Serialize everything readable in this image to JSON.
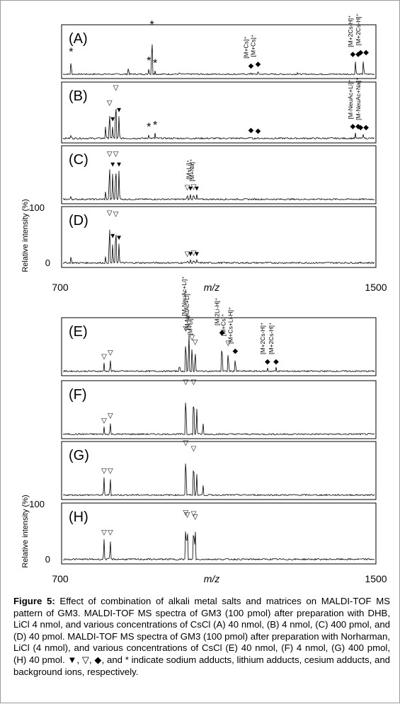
{
  "figure": {
    "caption_label": "Figure 5:",
    "caption_text": " Effect of combination of alkali metal salts and matrices on MALDI-TOF MS pattern of GM3. MALDI-TOF MS spectra of GM3 (100 pmol) after preparation with DHB, LiCl 4 nmol, and various concentrations of CsCl (A) 40 nmol, (B) 4 nmol, (C) 400 pmol, and (D) 40 pmol. MALDI-TOF MS spectra of GM3 (100 pmol) after preparation with Norharman, LiCl (4 nmol), and various concentrations of CsCl (E) 40 nmol, (F) 4 nmol, (G) 400 pmol, (H) 40 pmol. ▼, ▽, ◆, and * indicate sodium adducts, lithium adducts, cesium adducts, and background ions, respectively."
  },
  "colors": {
    "trace": "#000000",
    "frame": "#000000",
    "border": "#9a9a9a"
  },
  "chart_data": [
    {
      "type": "line",
      "group": "top",
      "xlabel": "m/z",
      "ylabel": "Relative intensity (%)",
      "xlim": [
        700,
        1500
      ],
      "x_ticks": [
        "700",
        "1500"
      ],
      "y_ticks": [
        "100",
        "0"
      ],
      "panels": [
        {
          "label": "(A)",
          "peaks": [
            {
              "x": 724,
              "y": 0.38,
              "marker": "*"
            },
            {
              "x": 870,
              "y": 0.22,
              "marker": ""
            },
            {
              "x": 922,
              "y": 0.18,
              "marker": "*"
            },
            {
              "x": 930,
              "y": 1.0,
              "marker": "*"
            },
            {
              "x": 938,
              "y": 0.12,
              "marker": "*"
            },
            {
              "x": 1000,
              "y": 0.1,
              "marker": ""
            },
            {
              "x": 1182,
              "y": 0.1,
              "marker": "◆"
            },
            {
              "x": 1200,
              "y": 0.14,
              "marker": "◆"
            },
            {
              "x": 1300,
              "y": 0.07,
              "marker": ""
            },
            {
              "x": 1448,
              "y": 0.36,
              "marker": "◆◆"
            },
            {
              "x": 1468,
              "y": 0.4,
              "marker": "◆◆"
            }
          ],
          "labels": [
            "[M+Cs]⁺",
            "[M+Cs]⁺",
            "[M+2Cs-H]⁺",
            "[M+2Cs-H]⁺"
          ]
        },
        {
          "label": "(B)",
          "peaks": [
            {
              "x": 724,
              "y": 0.12,
              "marker": ""
            },
            {
              "x": 812,
              "y": 0.3,
              "marker": ""
            },
            {
              "x": 822,
              "y": 0.62,
              "marker": "▽"
            },
            {
              "x": 830,
              "y": 0.3,
              "marker": "▼"
            },
            {
              "x": 838,
              "y": 0.92,
              "marker": "▽"
            },
            {
              "x": 846,
              "y": 0.48,
              "marker": "▼"
            },
            {
              "x": 922,
              "y": 0.12,
              "marker": "*"
            },
            {
              "x": 938,
              "y": 0.15,
              "marker": "*"
            },
            {
              "x": 1182,
              "y": 0.08,
              "marker": "◆"
            },
            {
              "x": 1200,
              "y": 0.07,
              "marker": "◆"
            },
            {
              "x": 1448,
              "y": 0.16,
              "marker": "◆◆"
            },
            {
              "x": 1468,
              "y": 0.14,
              "marker": "◆◆"
            }
          ],
          "labels": [
            "[M-NeuAc+Li]⁺",
            "[M-NeuAc+Na]⁺"
          ]
        },
        {
          "label": "(C)",
          "peaks": [
            {
              "x": 724,
              "y": 0.12,
              "marker": ""
            },
            {
              "x": 812,
              "y": 0.22,
              "marker": ""
            },
            {
              "x": 822,
              "y": 0.86,
              "marker": "▽"
            },
            {
              "x": 830,
              "y": 0.64,
              "marker": "▼"
            },
            {
              "x": 838,
              "y": 0.86,
              "marker": "▽"
            },
            {
              "x": 846,
              "y": 0.64,
              "marker": "▼"
            },
            {
              "x": 1020,
              "y": 0.16,
              "marker": "▽"
            },
            {
              "x": 1028,
              "y": 0.14,
              "marker": "▼"
            },
            {
              "x": 1036,
              "y": 0.18,
              "marker": "▽"
            },
            {
              "x": 1044,
              "y": 0.14,
              "marker": "▼"
            }
          ],
          "labels": [
            "[M+Li]⁺",
            "[M+Na]⁺"
          ]
        },
        {
          "label": "(D)",
          "peaks": [
            {
              "x": 724,
              "y": 0.2,
              "marker": ""
            },
            {
              "x": 812,
              "y": 0.18,
              "marker": ""
            },
            {
              "x": 822,
              "y": 0.9,
              "marker": "▽"
            },
            {
              "x": 830,
              "y": 0.45,
              "marker": "▼"
            },
            {
              "x": 838,
              "y": 0.88,
              "marker": "▽"
            },
            {
              "x": 846,
              "y": 0.42,
              "marker": "▼"
            },
            {
              "x": 1020,
              "y": 0.1,
              "marker": "▽"
            },
            {
              "x": 1028,
              "y": 0.1,
              "marker": "▼"
            },
            {
              "x": 1036,
              "y": 0.12,
              "marker": "▽"
            },
            {
              "x": 1044,
              "y": 0.1,
              "marker": "▼"
            }
          ],
          "labels": []
        }
      ]
    },
    {
      "type": "line",
      "group": "bottom",
      "xlabel": "m/z",
      "ylabel": "Relative intensity (%)",
      "xlim": [
        700,
        1500
      ],
      "x_ticks": [
        "700",
        "1500"
      ],
      "y_ticks": [
        "100",
        "0"
      ],
      "panels": [
        {
          "label": "(E)",
          "peaks": [
            {
              "x": 808,
              "y": 0.22,
              "marker": "▽"
            },
            {
              "x": 824,
              "y": 0.3,
              "marker": "▽"
            },
            {
              "x": 1000,
              "y": 0.2,
              "marker": ""
            },
            {
              "x": 1016,
              "y": 0.8,
              "marker": "▽"
            },
            {
              "x": 1024,
              "y": 0.92,
              "marker": "▽"
            },
            {
              "x": 1032,
              "y": 0.62,
              "marker": "▽"
            },
            {
              "x": 1040,
              "y": 0.52,
              "marker": "▽"
            },
            {
              "x": 1108,
              "y": 0.72,
              "marker": "◆"
            },
            {
              "x": 1124,
              "y": 0.5,
              "marker": "▽"
            },
            {
              "x": 1142,
              "y": 0.34,
              "marker": "◆"
            },
            {
              "x": 1224,
              "y": 0.12,
              "marker": "◆"
            },
            {
              "x": 1246,
              "y": 0.12,
              "marker": "◆"
            }
          ],
          "labels": [
            "[M-NeuAc+Li]⁺",
            "[M-NeuAc+Li]⁺",
            "[M+Li]⁺",
            "[M-2Li-H]⁺",
            "[M+Cs]⁺",
            "[M+Cs+Li-H]⁺",
            "[M+2Cs-H]⁺",
            "[M+2Cs-H]⁺"
          ]
        },
        {
          "label": "(F)",
          "peaks": [
            {
              "x": 808,
              "y": 0.2,
              "marker": "▽"
            },
            {
              "x": 824,
              "y": 0.3,
              "marker": "▽"
            },
            {
              "x": 1016,
              "y": 1.0,
              "marker": "▽"
            },
            {
              "x": 1036,
              "y": 1.0,
              "marker": "▽"
            },
            {
              "x": 1044,
              "y": 0.6,
              "marker": ""
            },
            {
              "x": 1060,
              "y": 0.3,
              "marker": ""
            }
          ],
          "labels": []
        },
        {
          "label": "(G)",
          "peaks": [
            {
              "x": 808,
              "y": 0.42,
              "marker": "▽"
            },
            {
              "x": 824,
              "y": 0.42,
              "marker": "▽"
            },
            {
              "x": 1016,
              "y": 1.0,
              "marker": "▽"
            },
            {
              "x": 1036,
              "y": 0.88,
              "marker": "▽"
            },
            {
              "x": 1044,
              "y": 0.5,
              "marker": ""
            },
            {
              "x": 1060,
              "y": 0.28,
              "marker": ""
            }
          ],
          "labels": []
        },
        {
          "label": "(H)",
          "peaks": [
            {
              "x": 808,
              "y": 0.45,
              "marker": "▽"
            },
            {
              "x": 824,
              "y": 0.45,
              "marker": "▽"
            },
            {
              "x": 1016,
              "y": 0.84,
              "marker": "▽"
            },
            {
              "x": 1020,
              "y": 0.8,
              "marker": "▽"
            },
            {
              "x": 1036,
              "y": 0.82,
              "marker": "▽"
            },
            {
              "x": 1040,
              "y": 0.76,
              "marker": "▽"
            }
          ],
          "labels": []
        }
      ]
    }
  ]
}
